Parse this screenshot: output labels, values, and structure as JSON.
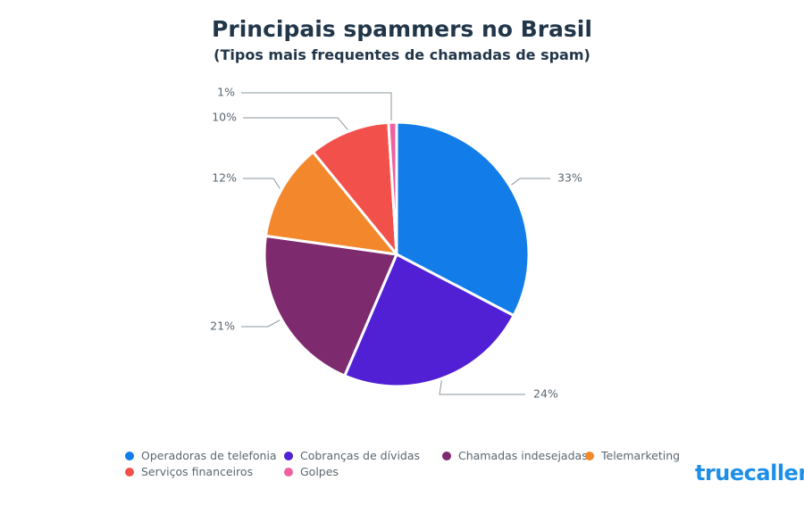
{
  "chart_data": {
    "type": "pie",
    "title": "Principais spammers no Brasil",
    "subtitle": "(Tipos mais frequentes de chamadas de spam)",
    "categories": [
      "Operadoras de telefonia",
      "Cobranças de dívidas",
      "Chamadas indesejadas",
      "Telemarketing",
      "Serviços financeiros",
      "Golpes"
    ],
    "values": [
      33,
      24,
      21,
      12,
      10,
      1
    ],
    "labels": [
      "33%",
      "24%",
      "21%",
      "12%",
      "10%",
      "1%"
    ],
    "colors": [
      "#127de8",
      "#5120d4",
      "#7e2a6e",
      "#f2872c",
      "#f2514b",
      "#f0609e"
    ],
    "legend_position": "bottom"
  },
  "brand": {
    "name": "truecaller",
    "color": "#1e8fe8"
  }
}
